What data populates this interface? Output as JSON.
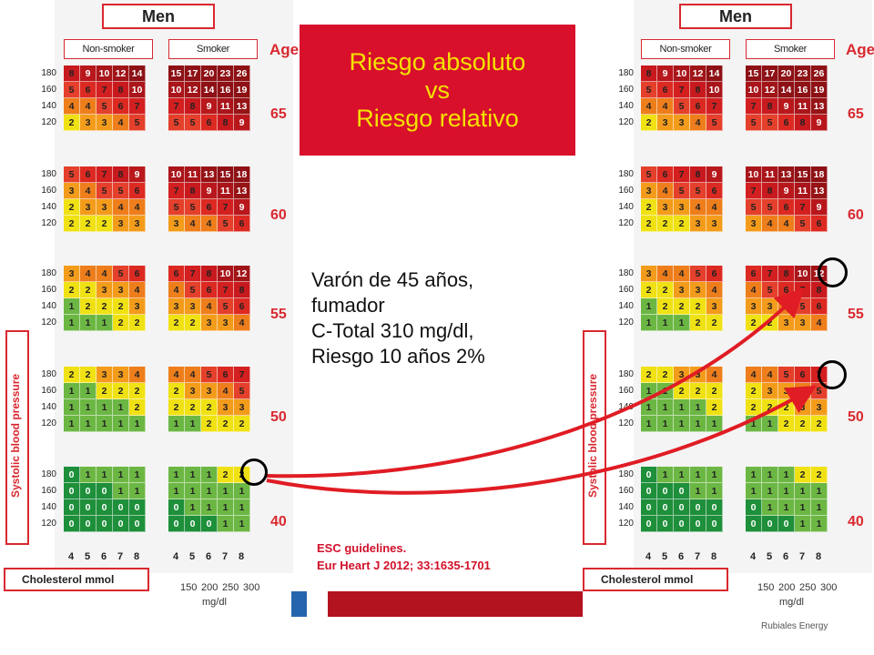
{
  "panel_men_label": "Men",
  "group_labels": {
    "nonsmoker": "Non-smoker",
    "smoker": "Smoker"
  },
  "age_header": "Age",
  "ages": [
    "65",
    "60",
    "55",
    "50",
    "40"
  ],
  "bp_labels": [
    "180",
    "160",
    "140",
    "120"
  ],
  "sbp_label": "Systolic blood pressure",
  "chol_label": "Cholesterol mmol",
  "chol_mmol_ticks": [
    "4",
    "5",
    "6",
    "7",
    "8"
  ],
  "chol_mgdl_ticks": [
    "150",
    "200",
    "250",
    "300"
  ],
  "chol_mgdl_unit": "mg/dl",
  "title": {
    "line1": "Riesgo absoluto",
    "line2": "vs",
    "line3": "Riesgo relativo"
  },
  "case_text": [
    "Varón de 45 años,",
    "fumador",
    "C-Total 310 mg/dl,",
    "Riesgo 10 años 2%"
  ],
  "reference": [
    "ESC guidelines.",
    "Eur Heart J 2012; 33:1635-1701"
  ],
  "footer_brand": "Rubiales Energy",
  "colors": {
    "accent_red": "#d8102c",
    "title_text": "#f5e200",
    "arrow": "#e01c24",
    "risk_scale": {
      "0": "#1e8f3a",
      "1": "#6cb744",
      "2": "#f0e114",
      "3": "#f39c1b",
      "4": "#ee7e1c",
      "5": "#e4402b",
      "6": "#dc2a22",
      "7": "#d31f20",
      "8": "#c81a1e",
      "9": "#b8181c",
      "10": "#a9151a",
      "12": "#a01418",
      "13": "#961316",
      "high": "#8d1115"
    }
  },
  "score_chart": {
    "age_bands": [
      {
        "age": "65",
        "nonsmoker": [
          [
            "8",
            "9",
            "10",
            "12",
            "14"
          ],
          [
            "5",
            "6",
            "7",
            "8",
            "10"
          ],
          [
            "4",
            "4",
            "5",
            "6",
            "7"
          ],
          [
            "2",
            "3",
            "3",
            "4",
            "5"
          ]
        ],
        "smoker": [
          [
            "15",
            "17",
            "20",
            "23",
            "26"
          ],
          [
            "10",
            "12",
            "14",
            "16",
            "19"
          ],
          [
            "7",
            "8",
            "9",
            "11",
            "13"
          ],
          [
            "5",
            "5",
            "6",
            "8",
            "9"
          ]
        ]
      },
      {
        "age": "60",
        "nonsmoker": [
          [
            "5",
            "6",
            "7",
            "8",
            "9"
          ],
          [
            "3",
            "4",
            "5",
            "5",
            "6"
          ],
          [
            "2",
            "3",
            "3",
            "4",
            "4"
          ],
          [
            "2",
            "2",
            "2",
            "3",
            "3"
          ]
        ],
        "smoker": [
          [
            "10",
            "11",
            "13",
            "15",
            "18"
          ],
          [
            "7",
            "8",
            "9",
            "11",
            "13"
          ],
          [
            "5",
            "5",
            "6",
            "7",
            "9"
          ],
          [
            "3",
            "4",
            "4",
            "5",
            "6"
          ]
        ]
      },
      {
        "age": "55",
        "nonsmoker": [
          [
            "3",
            "4",
            "4",
            "5",
            "6"
          ],
          [
            "2",
            "2",
            "3",
            "3",
            "4"
          ],
          [
            "1",
            "2",
            "2",
            "2",
            "3"
          ],
          [
            "1",
            "1",
            "1",
            "2",
            "2"
          ]
        ],
        "smoker": [
          [
            "6",
            "7",
            "8",
            "10",
            "12"
          ],
          [
            "4",
            "5",
            "6",
            "7",
            "8"
          ],
          [
            "3",
            "3",
            "4",
            "5",
            "6"
          ],
          [
            "2",
            "2",
            "3",
            "3",
            "4"
          ]
        ]
      },
      {
        "age": "50",
        "nonsmoker": [
          [
            "2",
            "2",
            "3",
            "3",
            "4"
          ],
          [
            "1",
            "1",
            "2",
            "2",
            "2"
          ],
          [
            "1",
            "1",
            "1",
            "1",
            "2"
          ],
          [
            "1",
            "1",
            "1",
            "1",
            "1"
          ]
        ],
        "smoker": [
          [
            "4",
            "4",
            "5",
            "6",
            "7"
          ],
          [
            "2",
            "3",
            "3",
            "4",
            "5"
          ],
          [
            "2",
            "2",
            "2",
            "3",
            "3"
          ],
          [
            "1",
            "1",
            "2",
            "2",
            "2"
          ]
        ]
      },
      {
        "age": "40",
        "nonsmoker": [
          [
            "0",
            "1",
            "1",
            "1",
            "1"
          ],
          [
            "0",
            "0",
            "0",
            "1",
            "1"
          ],
          [
            "0",
            "0",
            "0",
            "0",
            "0"
          ],
          [
            "0",
            "0",
            "0",
            "0",
            "0"
          ]
        ],
        "smoker": [
          [
            "1",
            "1",
            "1",
            "2",
            "2"
          ],
          [
            "1",
            "1",
            "1",
            "1",
            "1"
          ],
          [
            "0",
            "1",
            "1",
            "1",
            "1"
          ],
          [
            "0",
            "0",
            "0",
            "1",
            "1"
          ]
        ]
      }
    ]
  }
}
